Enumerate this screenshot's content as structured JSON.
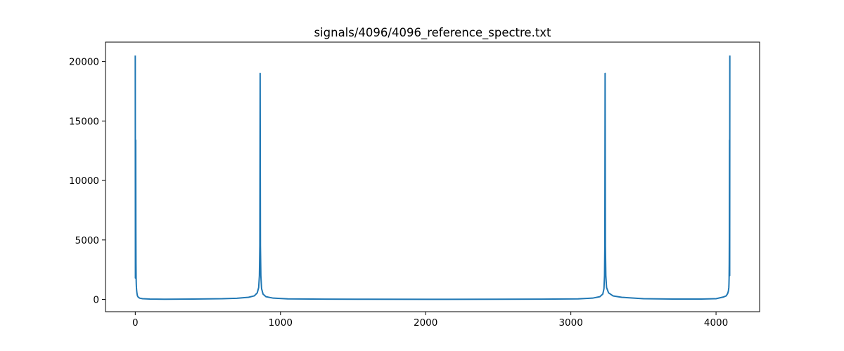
{
  "chart_data": {
    "type": "line",
    "title": "signals/4096/4096_reference_spectre.txt",
    "xlabel": "",
    "ylabel": "",
    "xlim": [
      -205,
      4300
    ],
    "ylim": [
      -1030,
      21630
    ],
    "xticks": [
      0,
      1000,
      2000,
      3000,
      4000
    ],
    "xtick_labels": [
      "0",
      "1000",
      "2000",
      "3000",
      "4000"
    ],
    "yticks": [
      0,
      5000,
      10000,
      15000,
      20000
    ],
    "ytick_labels": [
      "0",
      "5000",
      "10000",
      "15000",
      "20000"
    ],
    "grid": false,
    "legend": "none",
    "series": [
      {
        "color": "#1f77b4",
        "x": [
          0,
          1,
          2,
          3,
          4,
          5,
          6,
          7,
          8,
          10,
          12,
          15,
          20,
          30,
          50,
          100,
          200,
          400,
          600,
          700,
          780,
          820,
          840,
          850,
          855,
          858,
          860,
          862,
          865,
          870,
          880,
          900,
          950,
          1050,
          1300,
          1600,
          2048,
          2500,
          2800,
          3050,
          3150,
          3200,
          3220,
          3228,
          3232,
          3234,
          3236,
          3238,
          3241,
          3246,
          3260,
          3290,
          3350,
          3500,
          3700,
          3900,
          4000,
          4050,
          4070,
          4080,
          4085,
          4088,
          4089,
          4090,
          4091,
          4092,
          4093,
          4094,
          4095
        ],
        "y": [
          20500,
          1800,
          5000,
          13400,
          6000,
          3000,
          1800,
          1300,
          1000,
          700,
          500,
          300,
          200,
          110,
          60,
          30,
          20,
          35,
          60,
          100,
          180,
          300,
          550,
          1000,
          2000,
          4500,
          19000,
          4500,
          2000,
          900,
          450,
          230,
          110,
          50,
          25,
          15,
          10,
          15,
          25,
          50,
          110,
          230,
          450,
          900,
          2000,
          4500,
          19000,
          4500,
          2000,
          1000,
          550,
          300,
          180,
          60,
          30,
          30,
          60,
          200,
          300,
          500,
          700,
          1000,
          1300,
          1800,
          3000,
          6000,
          13400,
          2000,
          20500
        ]
      }
    ]
  }
}
